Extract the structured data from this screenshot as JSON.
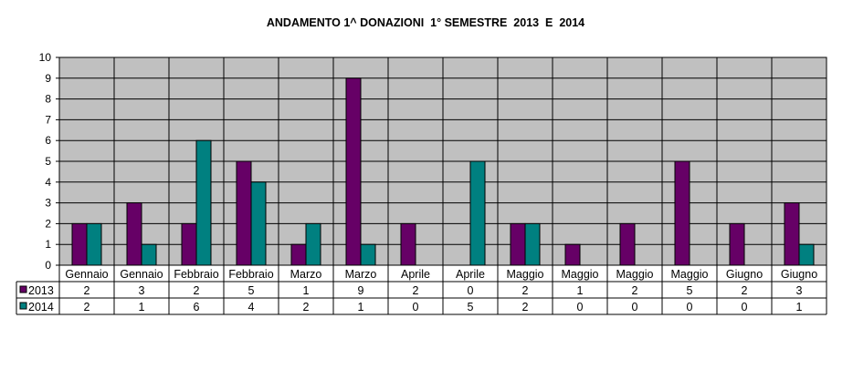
{
  "chart_data": {
    "type": "bar",
    "title": "ANDAMENTO 1^ DONAZIONI  1° SEMESTRE  2013  E  2014",
    "categories": [
      "Gennaio",
      "Gennaio",
      "Febbraio",
      "Febbraio",
      "Marzo",
      "Marzo",
      "Aprile",
      "Aprile",
      "Maggio",
      "Maggio",
      "Maggio",
      "Maggio",
      "Giugno",
      "Giugno"
    ],
    "series": [
      {
        "name": "2013",
        "color": "#660066",
        "values": [
          2,
          3,
          2,
          5,
          1,
          9,
          2,
          0,
          2,
          1,
          2,
          5,
          2,
          3
        ]
      },
      {
        "name": "2014",
        "color": "#008080",
        "values": [
          2,
          1,
          6,
          4,
          2,
          1,
          0,
          5,
          2,
          0,
          0,
          0,
          0,
          1
        ]
      }
    ],
    "ylim": [
      0,
      10
    ],
    "yticks": [
      0,
      1,
      2,
      3,
      4,
      5,
      6,
      7,
      8,
      9,
      10
    ],
    "grid": true,
    "plot_background": "#c0c0c0",
    "legend": "data-table",
    "xlabel": "",
    "ylabel": ""
  }
}
